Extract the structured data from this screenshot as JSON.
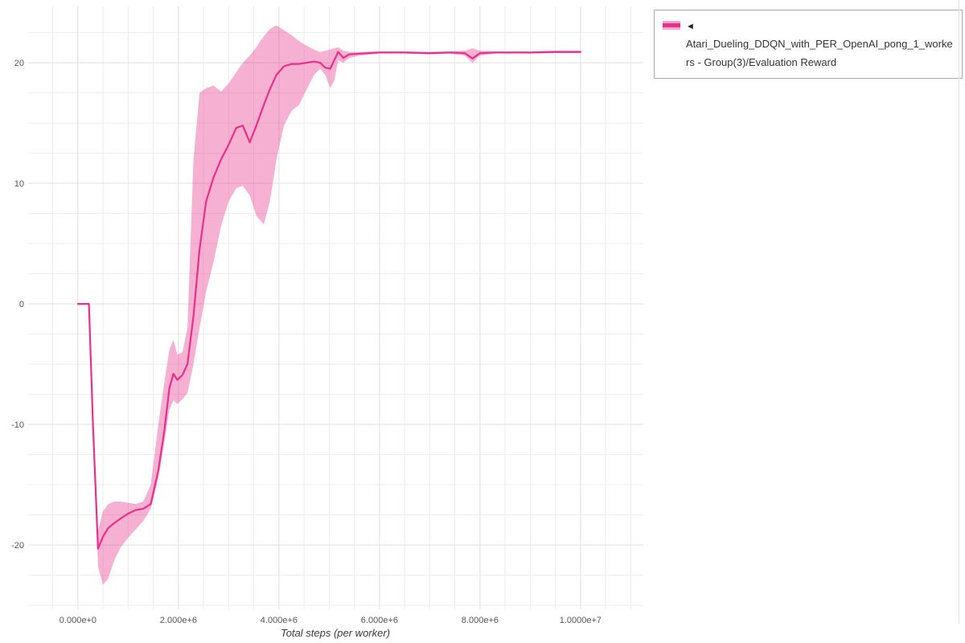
{
  "legend": {
    "marker": "◄",
    "label": "Atari_Dueling_DDQN_with_PER_OpenAI_pong_1_workers - Group(3)/Evaluation Reward"
  },
  "axes": {
    "x_title": "Total steps (per worker)",
    "x_ticks": [
      {
        "v": 0,
        "label": "0.000e+0"
      },
      {
        "v": 2000000,
        "label": "2.000e+6"
      },
      {
        "v": 4000000,
        "label": "4.000e+6"
      },
      {
        "v": 6000000,
        "label": "6.000e+6"
      },
      {
        "v": 8000000,
        "label": "8.000e+6"
      },
      {
        "v": 10000000,
        "label": "1.0000e+7"
      }
    ],
    "y_ticks": [
      {
        "v": 20,
        "label": "20"
      },
      {
        "v": 10,
        "label": "10"
      },
      {
        "v": 0,
        "label": "0"
      },
      {
        "v": -10,
        "label": "-10"
      },
      {
        "v": -20,
        "label": "-20"
      }
    ]
  },
  "colors": {
    "line": "#e8308a",
    "band_fill": "#e8308a",
    "band_opacity": 0.38,
    "grid_minor": "#ededed",
    "grid_major": "#e2e2e2",
    "tick_text": "#555555",
    "legend_border": "#a9a9a9",
    "legend_text": "#333333"
  },
  "chart_data": {
    "type": "line",
    "title": "",
    "xlabel": "Total steps (per worker)",
    "ylabel": "",
    "xlim": [
      -990000,
      11250000
    ],
    "ylim": [
      -25.33,
      24.67
    ],
    "grid": true,
    "legend_position": "top-right",
    "x": [
      0,
      220000,
      300000,
      400000,
      500000,
      600000,
      720000,
      850000,
      1000000,
      1150000,
      1300000,
      1450000,
      1600000,
      1720000,
      1820000,
      1900000,
      1980000,
      2080000,
      2180000,
      2300000,
      2420000,
      2550000,
      2700000,
      2850000,
      3000000,
      3150000,
      3280000,
      3420000,
      3550000,
      3700000,
      3820000,
      3950000,
      4100000,
      4250000,
      4400000,
      4550000,
      4700000,
      4820000,
      4920000,
      5020000,
      5100000,
      5180000,
      5280000,
      5400000,
      5600000,
      6000000,
      6500000,
      7000000,
      7400000,
      7700000,
      7850000,
      8000000,
      8300000,
      9000000,
      9500000,
      10000000
    ],
    "series": [
      {
        "name": "Evaluation Reward (group mean)",
        "values": [
          0,
          0,
          -10,
          -20.3,
          -19.3,
          -18.6,
          -18.2,
          -17.8,
          -17.4,
          -17.1,
          -17.0,
          -16.6,
          -13.8,
          -10.5,
          -7.0,
          -5.8,
          -6.3,
          -5.9,
          -5.0,
          -1.0,
          4.5,
          8.5,
          10.5,
          12.0,
          13.2,
          14.6,
          14.8,
          13.4,
          14.8,
          16.5,
          17.8,
          19.0,
          19.7,
          19.9,
          19.9,
          20.0,
          20.1,
          20.0,
          19.6,
          19.5,
          20.2,
          20.9,
          20.4,
          20.7,
          20.75,
          20.85,
          20.85,
          20.8,
          20.85,
          20.8,
          20.35,
          20.8,
          20.85,
          20.85,
          20.9,
          20.9
        ]
      },
      {
        "name": "band lower",
        "values": [
          0,
          0,
          -10.5,
          -21.8,
          -23.3,
          -22.8,
          -21.3,
          -20.2,
          -19.4,
          -18.7,
          -18.0,
          -17.0,
          -14.5,
          -11.5,
          -8.8,
          -8.0,
          -8.3,
          -7.9,
          -7.4,
          -5.0,
          -2.0,
          1.0,
          3.5,
          6.5,
          8.5,
          9.6,
          9.8,
          9.0,
          7.3,
          6.6,
          8.5,
          12.0,
          14.8,
          16.0,
          16.5,
          17.8,
          19.0,
          19.5,
          19.0,
          17.9,
          18.5,
          20.2,
          20.0,
          20.4,
          20.6,
          20.75,
          20.75,
          20.7,
          20.75,
          20.6,
          20.0,
          20.6,
          20.75,
          20.75,
          20.8,
          20.8
        ]
      },
      {
        "name": "band upper",
        "values": [
          0,
          0,
          -9.0,
          -18.8,
          -17.2,
          -16.6,
          -16.4,
          -16.4,
          -16.5,
          -16.6,
          -16.4,
          -15.0,
          -10.0,
          -6.5,
          -3.8,
          -3.0,
          -4.2,
          -4.0,
          -2.0,
          12.0,
          17.5,
          17.9,
          18.1,
          17.6,
          18.3,
          19.2,
          20.0,
          20.6,
          21.3,
          22.2,
          22.8,
          23.1,
          22.7,
          22.3,
          21.8,
          21.4,
          21.1,
          20.9,
          21.0,
          21.1,
          21.2,
          21.3,
          21.0,
          20.9,
          20.9,
          20.95,
          20.95,
          20.9,
          20.95,
          21.0,
          21.2,
          21.0,
          20.95,
          20.95,
          21.0,
          21.0
        ]
      }
    ]
  }
}
